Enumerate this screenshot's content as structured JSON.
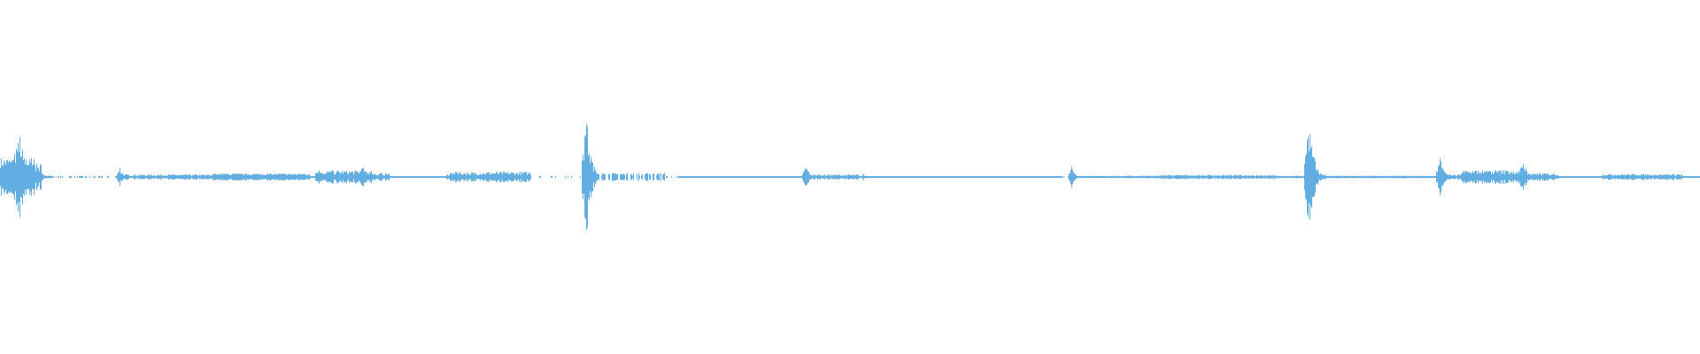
{
  "waveform": {
    "color": "#62aee3",
    "background": "#ffffff"
  }
}
